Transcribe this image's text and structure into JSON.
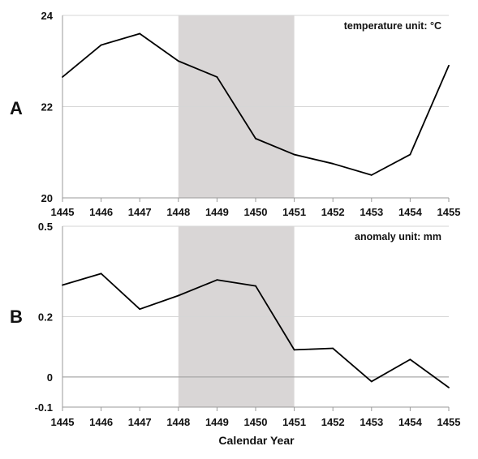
{
  "chart_data": [
    {
      "type": "line",
      "panel_label": "A",
      "annotation": "temperature unit: °C",
      "x": [
        1445,
        1446,
        1447,
        1448,
        1449,
        1450,
        1451,
        1452,
        1453,
        1454,
        1455
      ],
      "values": [
        22.65,
        23.35,
        23.6,
        23.0,
        22.65,
        21.3,
        20.95,
        20.75,
        20.5,
        20.95,
        22.9
      ],
      "xlim": [
        1445,
        1455
      ],
      "ylim": [
        20,
        24
      ],
      "yticks": [
        "20",
        "22",
        "24"
      ],
      "xticks": [
        "1445",
        "1446",
        "1447",
        "1448",
        "1449",
        "1450",
        "1451",
        "1452",
        "1453",
        "1454",
        "1455"
      ],
      "shaded_x_range": [
        1448,
        1451
      ],
      "grid": "horizontal",
      "line_color": "#000000",
      "shade_color": "#d9d6d6"
    },
    {
      "type": "line",
      "panel_label": "B",
      "annotation": "anomaly unit: mm",
      "x": [
        1445,
        1446,
        1447,
        1448,
        1449,
        1450,
        1451,
        1452,
        1453,
        1454,
        1455
      ],
      "values": [
        0.305,
        0.343,
        0.225,
        0.27,
        0.322,
        0.302,
        0.09,
        0.095,
        -0.015,
        0.058,
        -0.035
      ],
      "xlim": [
        1445,
        1455
      ],
      "ylim": [
        -0.1,
        0.5
      ],
      "yticks": [
        "-0.1",
        "0",
        "0.2",
        "0.5"
      ],
      "xticks": [
        "1445",
        "1446",
        "1447",
        "1448",
        "1449",
        "1450",
        "1451",
        "1452",
        "1453",
        "1454",
        "1455"
      ],
      "shaded_x_range": [
        1448,
        1451
      ],
      "grid": "horizontal",
      "zero_line": true,
      "line_color": "#000000",
      "shade_color": "#d9d6d6"
    }
  ],
  "xlabel": "Calendar Year"
}
